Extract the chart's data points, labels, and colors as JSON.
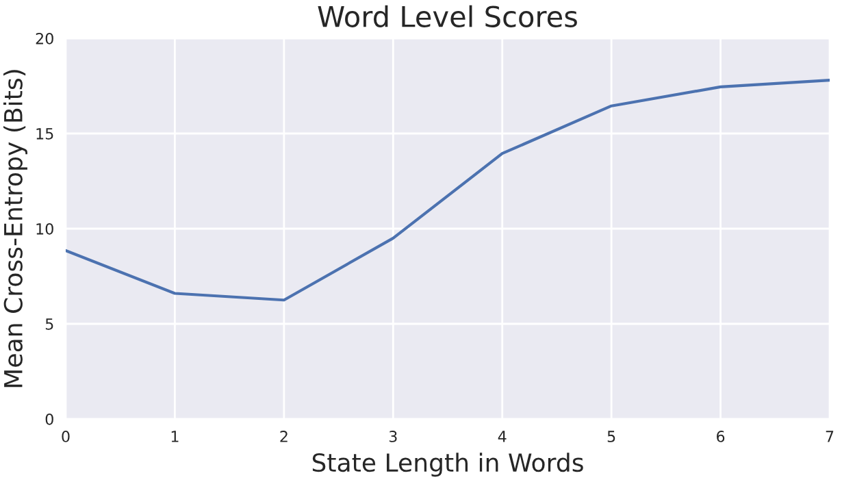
{
  "chart_data": {
    "type": "line",
    "title": "Word Level Scores",
    "xlabel": "State Length in Words",
    "ylabel": "Mean Cross-Entropy (Bits)",
    "x": [
      0,
      1,
      2,
      3,
      4,
      5,
      6,
      7
    ],
    "series": [
      {
        "color": "#4c72b0",
        "values": [
          8.85,
          6.6,
          6.25,
          9.5,
          13.95,
          16.45,
          17.45,
          17.8
        ]
      }
    ],
    "xlim": [
      0,
      7
    ],
    "xticks": [
      0,
      1,
      2,
      3,
      4,
      5,
      6,
      7
    ],
    "ylim": [
      0,
      20
    ],
    "yticks": [
      0,
      5,
      10,
      15,
      20
    ],
    "grid": true,
    "line_style": "solid"
  }
}
